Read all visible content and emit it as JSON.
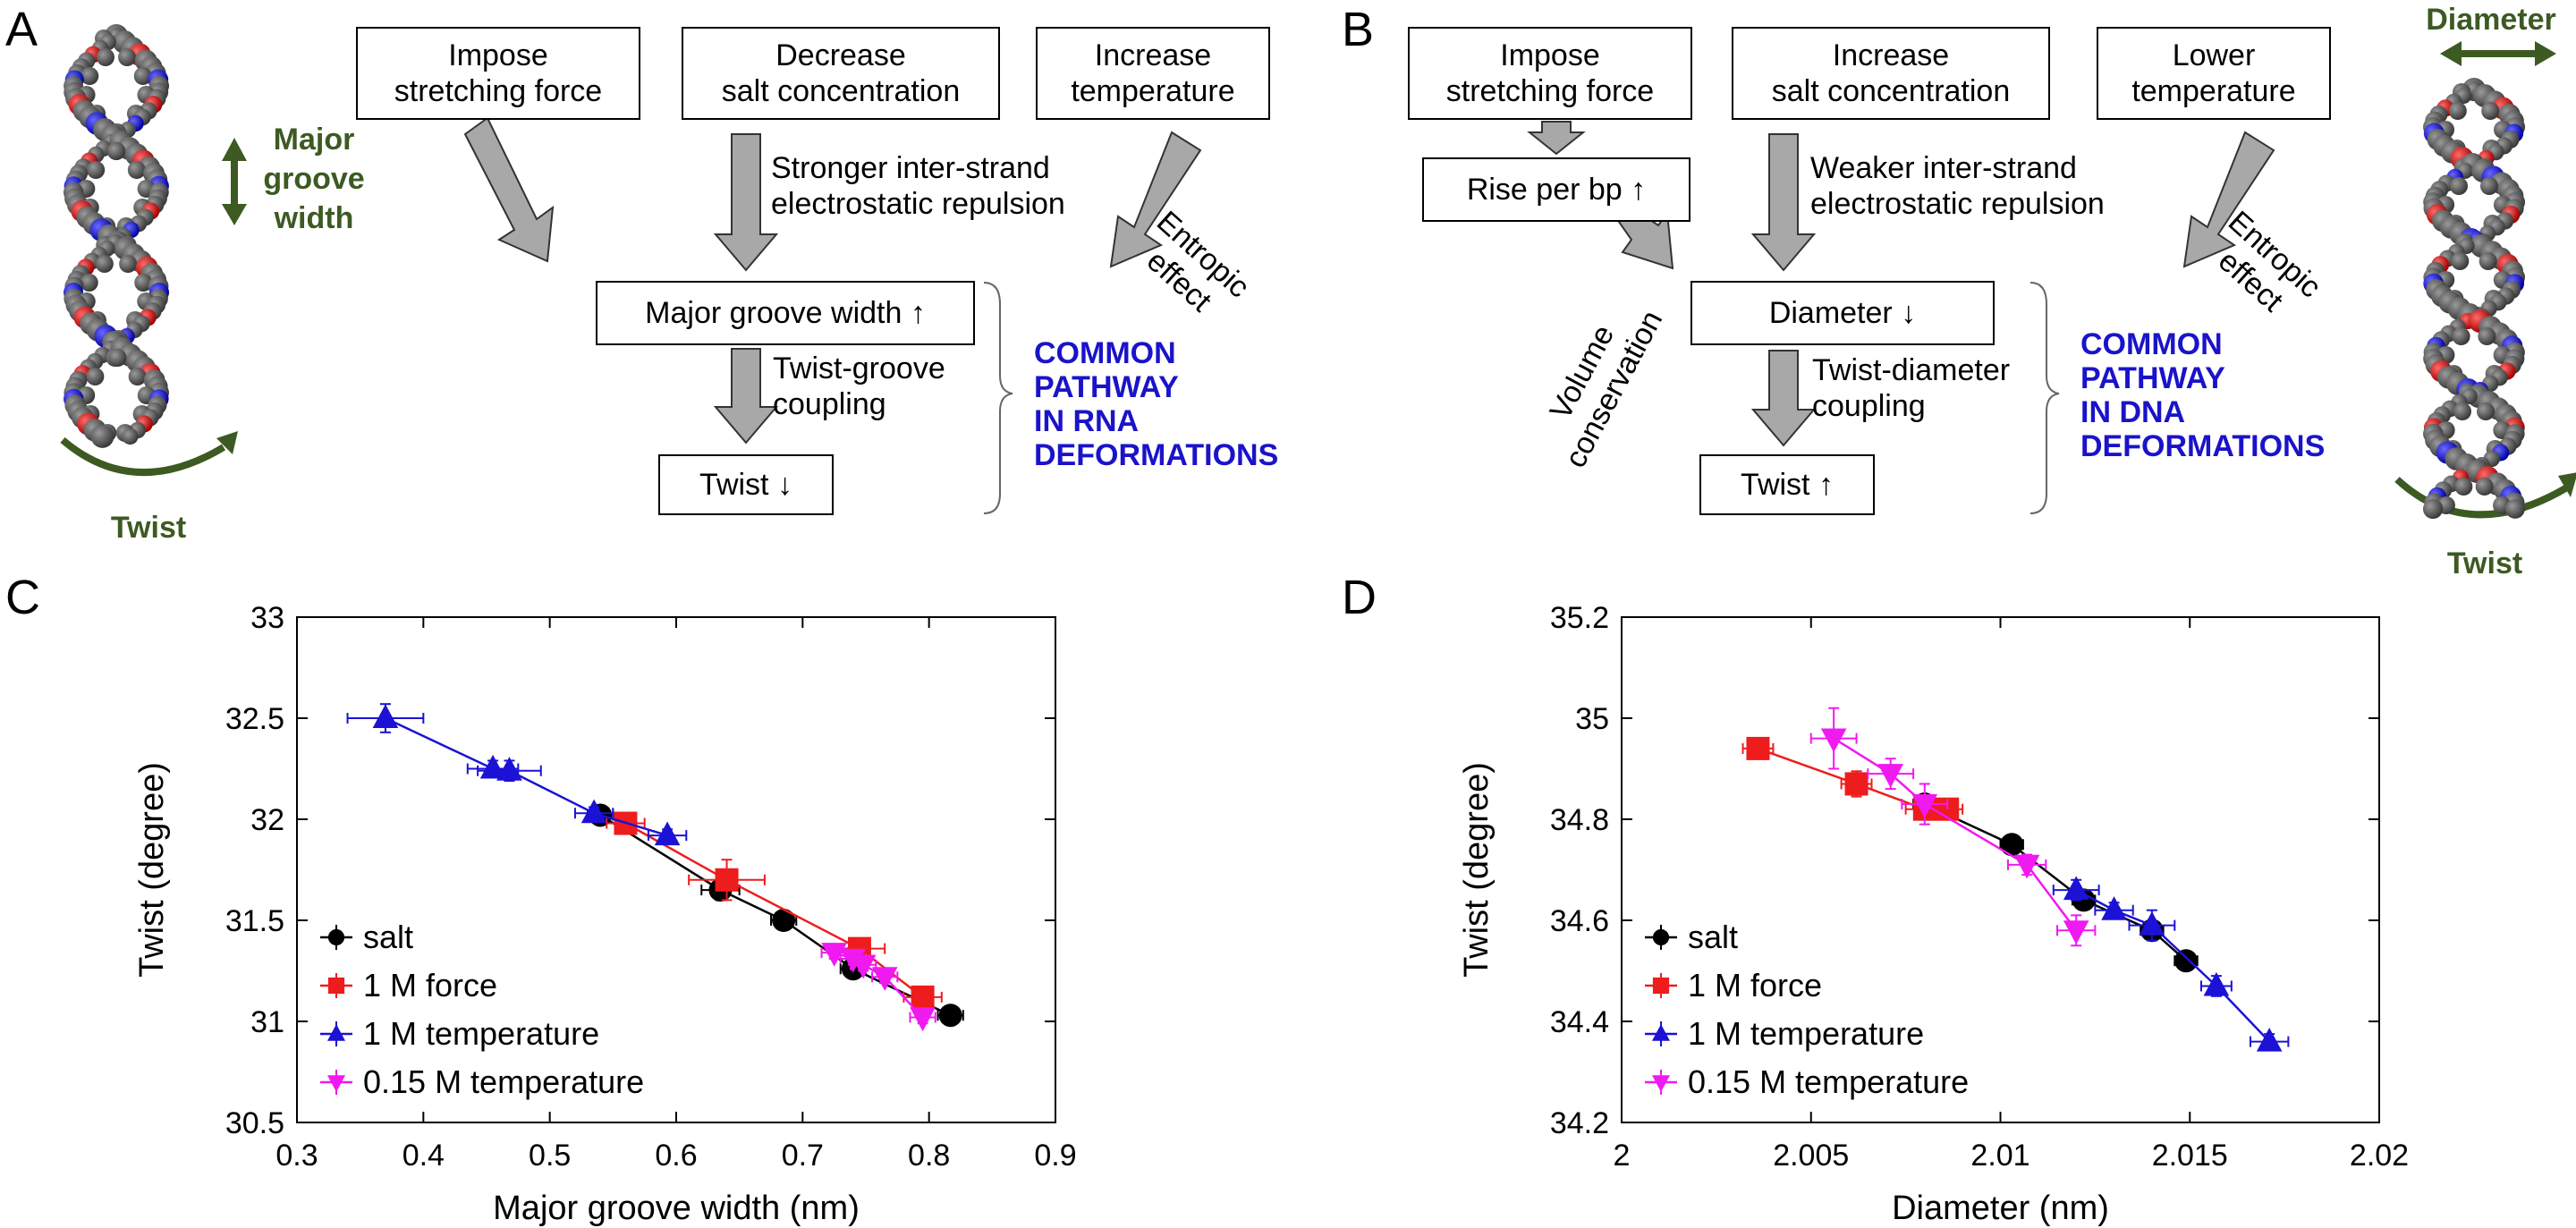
{
  "panel_a": {
    "letter": "A",
    "boxes": [
      {
        "line1": "Impose",
        "line2": "stretching force"
      },
      {
        "line1": "Decrease",
        "line2": "salt concentration"
      },
      {
        "line1": "Increase",
        "line2": "temperature"
      }
    ],
    "middle_label": {
      "line1": "Stronger inter-strand",
      "line2": "electrostatic repulsion"
    },
    "side_label": {
      "line1": "Entropic",
      "line2": "effect"
    },
    "mid_box": "Major groove width ↑",
    "coupling": {
      "line1": "Twist-groove",
      "line2": "coupling"
    },
    "result_box": "Twist ↓",
    "pathway": [
      "COMMON",
      "PATHWAY",
      "IN RNA",
      "DEFORMATIONS"
    ],
    "helix_labels": {
      "groove": [
        "Major",
        "groove",
        "width"
      ],
      "twist": "Twist"
    }
  },
  "panel_b": {
    "letter": "B",
    "boxes": [
      {
        "line1": "Impose",
        "line2": "stretching force"
      },
      {
        "line1": "Increase",
        "line2": "salt concentration"
      },
      {
        "line1": "Lower",
        "line2": "temperature"
      }
    ],
    "rise_box": "Rise per bp ↑",
    "middle_label": {
      "line1": "Weaker inter-strand",
      "line2": "electrostatic repulsion"
    },
    "side_label": {
      "line1": "Entropic",
      "line2": "effect"
    },
    "volume_label": {
      "line1": "Volume",
      "line2": "conservation"
    },
    "mid_box": "Diameter ↓",
    "coupling": {
      "line1": "Twist-diameter",
      "line2": "coupling"
    },
    "result_box": "Twist ↑",
    "pathway": [
      "COMMON",
      "PATHWAY",
      "IN DNA",
      "DEFORMATIONS"
    ],
    "helix_labels": {
      "diameter": "Diameter",
      "twist": "Twist"
    }
  },
  "colors": {
    "salt": "#000000",
    "force": "#ee1c1c",
    "temp1M": "#1b12d6",
    "temp015M": "#f019f0",
    "arrow": "#a8a8a8",
    "green": "#3c5a22",
    "pathway": "#1a13c9"
  },
  "chart_data": [
    {
      "panel": "C",
      "type": "scatter",
      "xlabel": "Major groove width (nm)",
      "ylabel": "Twist (degree)",
      "xlim": [
        0.3,
        0.9
      ],
      "ylim": [
        30.5,
        33
      ],
      "xticks": [
        "0.3",
        "0.4",
        "0.5",
        "0.6",
        "0.7",
        "0.8",
        "0.9"
      ],
      "yticks": [
        "30.5",
        "31",
        "31.5",
        "32",
        "32.5",
        "33"
      ],
      "legend_position": "bottom-left",
      "series": [
        {
          "name": "salt",
          "color": "#000000",
          "marker": "circle",
          "x": [
            0.54,
            0.635,
            0.685,
            0.74,
            0.817
          ],
          "y": [
            32.02,
            31.65,
            31.5,
            31.26,
            31.03
          ],
          "xerr": [
            0.01,
            0.015,
            0.01,
            0.01,
            0.01
          ],
          "yerr": [
            0.03,
            0.05,
            0.03,
            0.03,
            0.03
          ]
        },
        {
          "name": "1 M force",
          "color": "#ee1c1c",
          "marker": "square",
          "x": [
            0.56,
            0.64,
            0.745,
            0.795
          ],
          "y": [
            31.98,
            31.7,
            31.36,
            31.12
          ],
          "xerr": [
            0.015,
            0.03,
            0.02,
            0.015
          ],
          "yerr": [
            0.05,
            0.1,
            0.05,
            0.04
          ]
        },
        {
          "name": "1 M temperature",
          "color": "#1b12d6",
          "marker": "triangle-up",
          "x": [
            0.37,
            0.455,
            0.468,
            0.535,
            0.593
          ],
          "y": [
            32.5,
            32.25,
            32.24,
            32.03,
            31.92
          ],
          "xerr": [
            0.03,
            0.02,
            0.025,
            0.015,
            0.015
          ],
          "yerr": [
            0.07,
            0.04,
            0.05,
            0.03,
            0.03
          ]
        },
        {
          "name": "0.15 M temperature",
          "color": "#f019f0",
          "marker": "triangle-down",
          "x": [
            0.725,
            0.74,
            0.748,
            0.765,
            0.795
          ],
          "y": [
            31.34,
            31.31,
            31.28,
            31.22,
            31.02
          ],
          "xerr": [
            0.01,
            0.01,
            0.01,
            0.01,
            0.01
          ],
          "yerr": [
            0.03,
            0.03,
            0.03,
            0.03,
            0.03
          ]
        }
      ]
    },
    {
      "panel": "D",
      "type": "scatter",
      "xlabel": "Diameter (nm)",
      "ylabel": "Twist (degree)",
      "xlim": [
        2,
        2.02
      ],
      "ylim": [
        34.2,
        35.2
      ],
      "xticks": [
        "2",
        "2.005",
        "2.01",
        "2.015",
        "2.02"
      ],
      "yticks": [
        "34.2",
        "34.4",
        "34.6",
        "34.8",
        "35",
        "35.2"
      ],
      "legend_position": "bottom-left",
      "series": [
        {
          "name": "salt",
          "color": "#000000",
          "marker": "circle",
          "x": [
            2.008,
            2.0103,
            2.0122,
            2.014,
            2.0149
          ],
          "y": [
            34.83,
            34.75,
            34.64,
            34.58,
            34.52
          ],
          "xerr": [
            0.0003,
            0.0003,
            0.0003,
            0.0003,
            0.0003
          ],
          "yerr": [
            0.01,
            0.01,
            0.01,
            0.01,
            0.01
          ]
        },
        {
          "name": "1 M force",
          "color": "#ee1c1c",
          "marker": "square",
          "x": [
            2.0036,
            2.0062,
            2.008,
            2.0086
          ],
          "y": [
            34.94,
            34.87,
            34.82,
            34.82
          ],
          "xerr": [
            0.0004,
            0.0004,
            0.0005,
            0.0004
          ],
          "yerr": [
            0.02,
            0.025,
            0.02,
            0.015
          ]
        },
        {
          "name": "1 M temperature",
          "color": "#1b12d6",
          "marker": "triangle-up",
          "x": [
            2.012,
            2.013,
            2.014,
            2.0157,
            2.0171
          ],
          "y": [
            34.66,
            34.62,
            34.59,
            34.47,
            34.36
          ],
          "xerr": [
            0.0006,
            0.0005,
            0.0006,
            0.0004,
            0.0005
          ],
          "yerr": [
            0.02,
            0.015,
            0.03,
            0.02,
            0.015
          ]
        },
        {
          "name": "0.15 M temperature",
          "color": "#f019f0",
          "marker": "triangle-down",
          "x": [
            2.0056,
            2.0071,
            2.008,
            2.0107,
            2.012
          ],
          "y": [
            34.96,
            34.89,
            34.83,
            34.71,
            34.58
          ],
          "xerr": [
            0.0006,
            0.0006,
            0.0006,
            0.0005,
            0.0005
          ],
          "yerr": [
            0.06,
            0.03,
            0.04,
            0.02,
            0.03
          ]
        }
      ]
    }
  ]
}
